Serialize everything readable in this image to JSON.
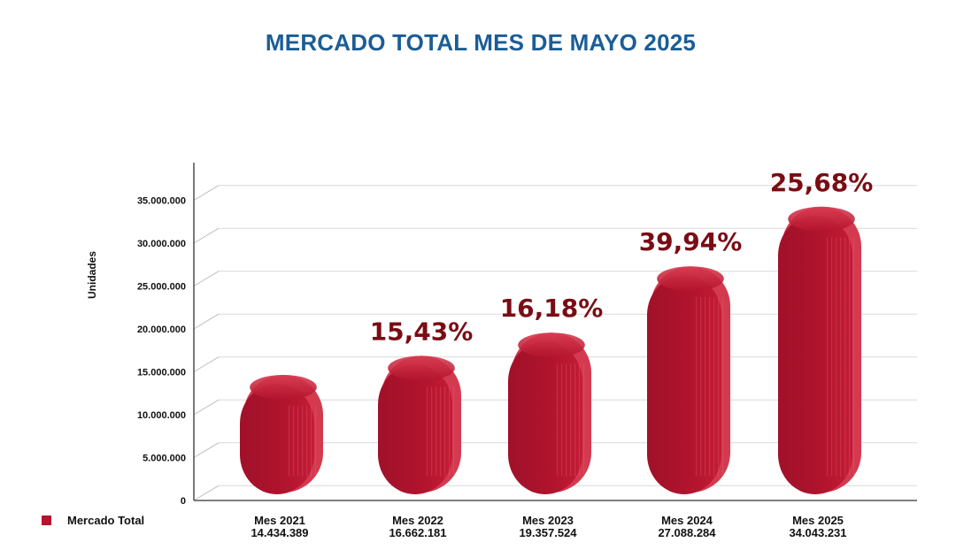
{
  "chart_data": {
    "type": "bar",
    "title": "MERCADO TOTAL MES DE MAYO 2025",
    "ylabel": "Unidades",
    "xlabel": "",
    "ylim": [
      0,
      40000000
    ],
    "yticks": [
      0,
      5000000,
      10000000,
      15000000,
      20000000,
      25000000,
      30000000,
      35000000
    ],
    "ytick_labels": [
      "0",
      "5.000.000",
      "10.000.000",
      "15.000.000",
      "20.000.000",
      "25.000.000",
      "30.000.000",
      "35.000.000"
    ],
    "categories": [
      "Mes 2021",
      "Mes 2022",
      "Mes 2023",
      "Mes 2024",
      "Mes 2025"
    ],
    "value_labels": [
      "14.434.389",
      "16.662.181",
      "19.357.524",
      "27.088.284",
      "34.043.231"
    ],
    "series": [
      {
        "name": "Mercado Total",
        "values": [
          14434389,
          16662181,
          19357524,
          27088284,
          34043231
        ],
        "growth_labels": [
          "",
          "15,43%",
          "16,18%",
          "39,94%",
          "25,68%"
        ]
      }
    ],
    "grid": true,
    "legend_position": "bottom-left",
    "colors": {
      "bar": "#b4142d",
      "bar_dark": "#8f0f22",
      "bar_light": "#d43a4f",
      "growth_label": "#7a0c14",
      "title": "#1b5d96",
      "grid": "#d9d9d9"
    }
  }
}
